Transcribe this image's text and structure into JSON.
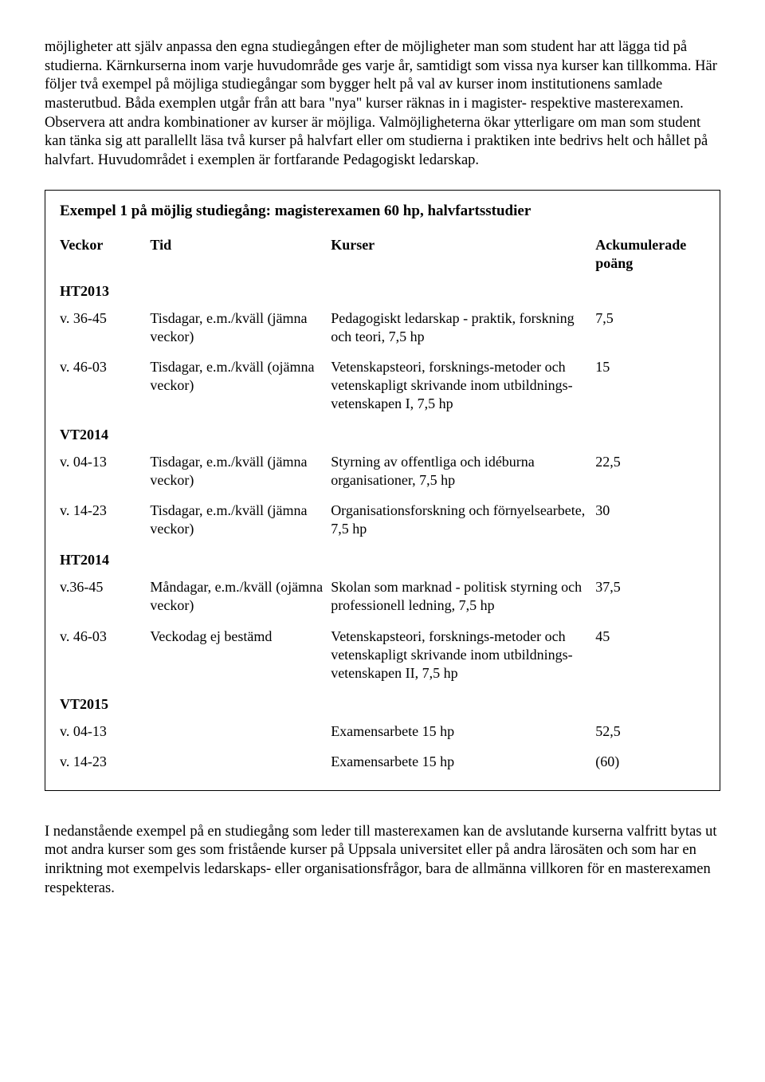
{
  "intro_paragraph": "möjligheter att själv anpassa den egna studiegången efter de möjligheter man som student har att lägga tid på studierna. Kärnkurserna inom varje huvudområde ges varje år, samtidigt som vissa nya kurser kan tillkomma. Här följer två exempel på möjliga studiegångar som bygger helt på val av kurser inom institutionens samlade masterutbud. Båda exemplen utgår från att bara \"nya\" kurser räknas in i magister- respektive masterexamen. Observera att andra kombinationer av kurser är möjliga. Valmöjligheterna ökar ytterligare om man som student kan tänka sig att parallellt läsa två kurser på halvfart eller om studierna i praktiken inte bedrivs helt och hållet på halvfart. Huvudområdet i exemplen är fortfarande Pedagogiskt ledarskap.",
  "table_title": "Exempel 1 på möjlig studiegång: magisterexamen 60 hp, halvfartsstudier",
  "headers": {
    "weeks": "Veckor",
    "time": "Tid",
    "courses": "Kurser",
    "points": "Ackumulerade poäng"
  },
  "rows": [
    {
      "kind": "term",
      "label": "HT2013"
    },
    {
      "kind": "row",
      "weeks": "v. 36-45",
      "time": "Tisdagar, e.m./kväll (jämna veckor)",
      "course": "Pedagogiskt ledarskap - praktik, forskning och teori, 7,5 hp",
      "points": "7,5"
    },
    {
      "kind": "row",
      "weeks": "v. 46-03",
      "time": "Tisdagar, e.m./kväll (ojämna veckor)",
      "course": "Vetenskapsteori, forsknings-metoder och vetenskapligt skrivande inom utbildnings-vetenskapen I, 7,5 hp",
      "points": "15"
    },
    {
      "kind": "term",
      "label": "VT2014"
    },
    {
      "kind": "row",
      "weeks": "v. 04-13",
      "time": "Tisdagar, e.m./kväll (jämna veckor)",
      "course": "Styrning av offentliga och idéburna organisationer, 7,5 hp",
      "points": "22,5"
    },
    {
      "kind": "row",
      "weeks": "v. 14-23",
      "time": "Tisdagar, e.m./kväll (jämna veckor)",
      "course": "Organisationsforskning och förnyelsearbete, 7,5 hp",
      "points": "30"
    },
    {
      "kind": "term",
      "label": "HT2014"
    },
    {
      "kind": "row",
      "weeks": "v.36-45",
      "time": "Måndagar, e.m./kväll (ojämna veckor)",
      "course": "Skolan som marknad - politisk styrning och professionell ledning, 7,5 hp",
      "points": "37,5"
    },
    {
      "kind": "row",
      "weeks": "v. 46-03",
      "time": "Veckodag ej bestämd",
      "course": "Vetenskapsteori, forsknings-metoder och vetenskapligt skrivande inom utbildnings-vetenskapen II, 7,5 hp",
      "points": "45"
    },
    {
      "kind": "term",
      "label": "VT2015"
    },
    {
      "kind": "row",
      "weeks": "v. 04-13",
      "time": "",
      "course": "Examensarbete 15 hp",
      "points": "52,5"
    },
    {
      "kind": "row",
      "weeks": "v. 14-23",
      "time": "",
      "course": "Examensarbete 15 hp",
      "points": "(60)"
    }
  ],
  "outro_paragraph": "I nedanstående exempel på en studiegång som leder till masterexamen kan de avslutande kurserna valfritt bytas ut mot andra kurser som ges som fristående kurser på Uppsala universitet eller på andra lärosäten och som har en inriktning mot exempelvis ledarskaps- eller organisationsfrågor, bara de allmänna villkoren för en masterexamen respekteras."
}
